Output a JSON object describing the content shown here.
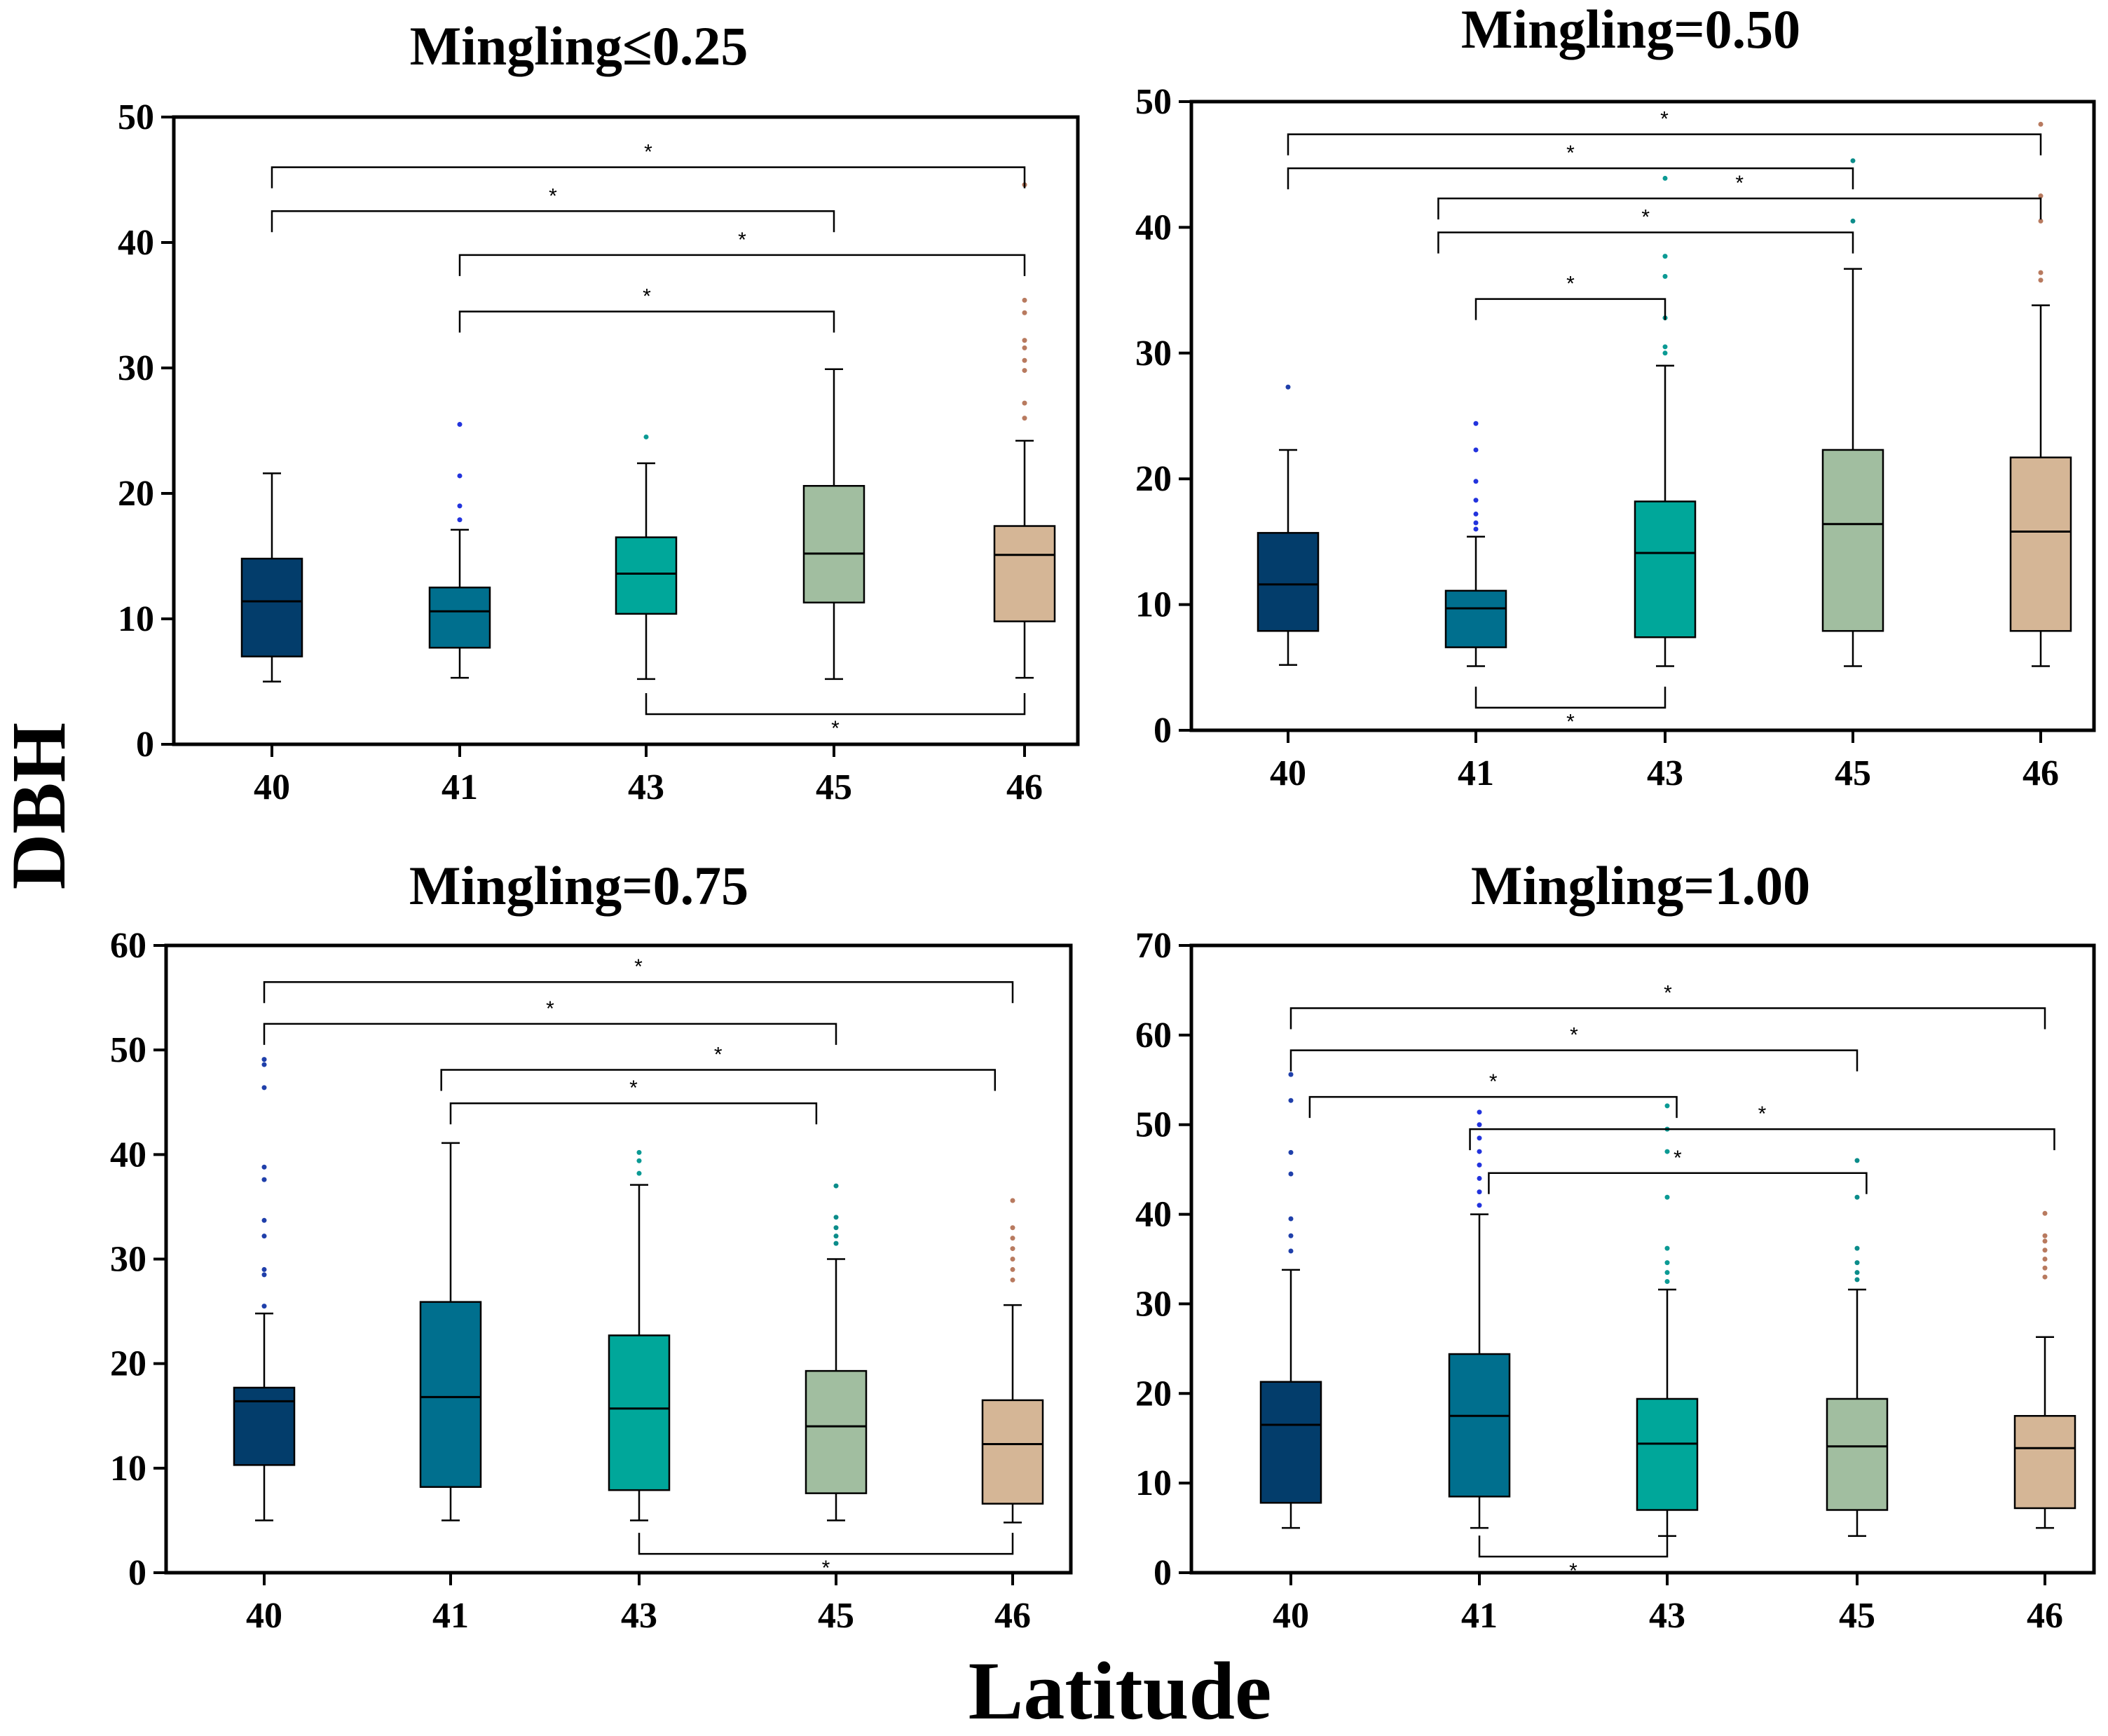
{
  "figure": {
    "ylabel": "DBH",
    "xlabel": "Latitude"
  },
  "colors": [
    "#033d6b",
    "#006f8e",
    "#00a79a",
    "#a1bea0",
    "#d5b696"
  ],
  "outlier_colors": [
    "#1f3faa",
    "#2233dd",
    "#0b9a94",
    "#0b8c8a",
    "#b87a5f"
  ],
  "chart_data": [
    {
      "type": "box",
      "title": "Mingling≤0.25",
      "categories": [
        "40",
        "41",
        "43",
        "45",
        "46"
      ],
      "yticks": [
        0,
        10,
        20,
        30,
        40,
        50
      ],
      "ylim": [
        0,
        50
      ],
      "boxes": [
        {
          "min": 5,
          "q1": 7,
          "median": 11.4,
          "q3": 14.8,
          "max": 21.6,
          "outliers": []
        },
        {
          "min": 5.3,
          "q1": 7.7,
          "median": 10.6,
          "q3": 12.5,
          "max": 17.1,
          "outliers": [
            17.9,
            19,
            21.4,
            25.5
          ]
        },
        {
          "min": 5.2,
          "q1": 10.4,
          "median": 13.6,
          "q3": 16.5,
          "max": 22.4,
          "outliers": [
            24.5
          ]
        },
        {
          "min": 5.2,
          "q1": 11.3,
          "median": 15.2,
          "q3": 20.6,
          "max": 29.9,
          "outliers": []
        },
        {
          "min": 5.3,
          "q1": 9.8,
          "median": 15.1,
          "q3": 17.4,
          "max": 24.2,
          "outliers": [
            26,
            27.2,
            29.8,
            30.6,
            31.6,
            32.2,
            34.4,
            35.4,
            44.6
          ]
        }
      ],
      "comparisons": [
        {
          "from": 0,
          "to": 4,
          "y": 46,
          "label": "*"
        },
        {
          "from": 0,
          "to": 3,
          "y": 42.5,
          "label": "*"
        },
        {
          "from": 1,
          "to": 4,
          "y": 39,
          "label": "*"
        },
        {
          "from": 1,
          "to": 3,
          "y": 34.5,
          "label": "*"
        },
        {
          "from": 2,
          "to": 4,
          "y": 2.4,
          "label": "*",
          "down": true
        }
      ]
    },
    {
      "type": "box",
      "title": "Mingling=0.50",
      "categories": [
        "40",
        "41",
        "43",
        "45",
        "46"
      ],
      "yticks": [
        0,
        10,
        20,
        30,
        40,
        50
      ],
      "ylim": [
        0,
        50
      ],
      "boxes": [
        {
          "min": 5.2,
          "q1": 7.9,
          "median": 11.6,
          "q3": 15.7,
          "max": 22.3,
          "outliers": [
            27.3
          ]
        },
        {
          "min": 5.1,
          "q1": 6.6,
          "median": 9.7,
          "q3": 11.1,
          "max": 15.4,
          "outliers": [
            16,
            16.5,
            17.2,
            18.3,
            19.8,
            22.3,
            24.4
          ]
        },
        {
          "min": 5.1,
          "q1": 7.4,
          "median": 14.1,
          "q3": 18.2,
          "max": 29,
          "outliers": [
            30,
            30.5,
            32.8,
            36.1,
            37.7,
            43.9
          ]
        },
        {
          "min": 5.1,
          "q1": 7.9,
          "median": 16.4,
          "q3": 22.3,
          "max": 36.7,
          "outliers": [
            40.5,
            45.3
          ]
        },
        {
          "min": 5.1,
          "q1": 7.9,
          "median": 15.8,
          "q3": 21.7,
          "max": 33.8,
          "outliers": [
            35.8,
            36.4,
            40.5,
            42.5,
            48.2
          ]
        }
      ],
      "comparisons": [
        {
          "from": 0,
          "to": 4,
          "y": 47.4,
          "label": "*"
        },
        {
          "from": 0,
          "to": 3,
          "y": 44.7,
          "label": "*"
        },
        {
          "from": 0.8,
          "to": 4,
          "y": 42.3,
          "label": "*"
        },
        {
          "from": 0.8,
          "to": 3,
          "y": 39.6,
          "label": "*"
        },
        {
          "from": 1,
          "to": 2,
          "y": 34.3,
          "label": "*"
        },
        {
          "from": 1,
          "to": 2,
          "y": 1.8,
          "label": "*",
          "down": true
        }
      ]
    },
    {
      "type": "box",
      "title": "Mingling=0.75",
      "categories": [
        "40",
        "41",
        "43",
        "45",
        "46"
      ],
      "yticks": [
        0,
        10,
        20,
        30,
        40,
        50,
        60
      ],
      "ylim": [
        0,
        60
      ],
      "boxes": [
        {
          "min": 5,
          "q1": 10.3,
          "median": 16.4,
          "q3": 17.7,
          "max": 24.8,
          "outliers": [
            25.5,
            28.5,
            29,
            32.2,
            33.7,
            37.6,
            38.8,
            46.4,
            48.6,
            49.1
          ]
        },
        {
          "min": 5,
          "q1": 8.2,
          "median": 16.8,
          "q3": 25.9,
          "max": 41.1,
          "outliers": []
        },
        {
          "min": 5,
          "q1": 7.9,
          "median": 15.7,
          "q3": 22.7,
          "max": 37.1,
          "outliers": [
            38.2,
            39.4,
            40.2
          ]
        },
        {
          "min": 5,
          "q1": 7.6,
          "median": 14,
          "q3": 19.3,
          "max": 30,
          "outliers": [
            31.5,
            32.2,
            33,
            34,
            37
          ]
        },
        {
          "min": 4.8,
          "q1": 6.6,
          "median": 12.3,
          "q3": 16.5,
          "max": 25.6,
          "outliers": [
            28,
            29,
            30,
            31,
            32,
            33,
            35.6
          ]
        }
      ],
      "comparisons": [
        {
          "from": 0,
          "to": 4,
          "y": 56.5,
          "label": "*"
        },
        {
          "from": 0,
          "to": 3,
          "y": 52.5,
          "label": "*"
        },
        {
          "from": 0.95,
          "to": 3.9,
          "y": 48.1,
          "label": "*"
        },
        {
          "from": 1,
          "to": 2.9,
          "y": 44.9,
          "label": "*"
        },
        {
          "from": 2,
          "to": 4,
          "y": 1.8,
          "label": "*",
          "down": true
        }
      ]
    },
    {
      "type": "box",
      "title": "Mingling=1.00",
      "categories": [
        "40",
        "41",
        "43",
        "45",
        "46"
      ],
      "yticks": [
        0,
        10,
        20,
        30,
        40,
        50,
        60,
        70
      ],
      "ylim": [
        0,
        70
      ],
      "boxes": [
        {
          "min": 5,
          "q1": 7.8,
          "median": 16.5,
          "q3": 21.3,
          "max": 33.8,
          "outliers": [
            35.9,
            37.6,
            39.5,
            44.5,
            46.9,
            52.7,
            55.6
          ]
        },
        {
          "min": 5,
          "q1": 8.5,
          "median": 17.5,
          "q3": 24.4,
          "max": 40,
          "outliers": [
            41,
            42.5,
            44,
            45.5,
            47,
            48.5,
            50,
            51.4
          ]
        },
        {
          "min": 4.1,
          "q1": 7,
          "median": 14.4,
          "q3": 19.4,
          "max": 31.6,
          "outliers": [
            32.5,
            33.5,
            34.6,
            36.2,
            41.9,
            47,
            49.5,
            52.1
          ]
        },
        {
          "min": 4.1,
          "q1": 7,
          "median": 14.1,
          "q3": 19.4,
          "max": 31.6,
          "outliers": [
            32.7,
            33.5,
            34.6,
            36.2,
            41.9,
            46
          ]
        },
        {
          "min": 5,
          "q1": 7.2,
          "median": 13.9,
          "q3": 17.5,
          "max": 26.3,
          "outliers": [
            33,
            34,
            35,
            36,
            37,
            37.6,
            40.1
          ]
        }
      ],
      "comparisons": [
        {
          "from": 0,
          "to": 4,
          "y": 63,
          "label": "*"
        },
        {
          "from": 0,
          "to": 3,
          "y": 58.3,
          "label": "*"
        },
        {
          "from": 0.1,
          "to": 2.05,
          "y": 53.1,
          "label": "*"
        },
        {
          "from": 0.95,
          "to": 4.05,
          "y": 49.5,
          "label": "*"
        },
        {
          "from": 1.05,
          "to": 3.05,
          "y": 44.6,
          "label": "*"
        },
        {
          "from": 1,
          "to": 2,
          "y": 1.8,
          "label": "*",
          "down": true
        }
      ]
    }
  ]
}
